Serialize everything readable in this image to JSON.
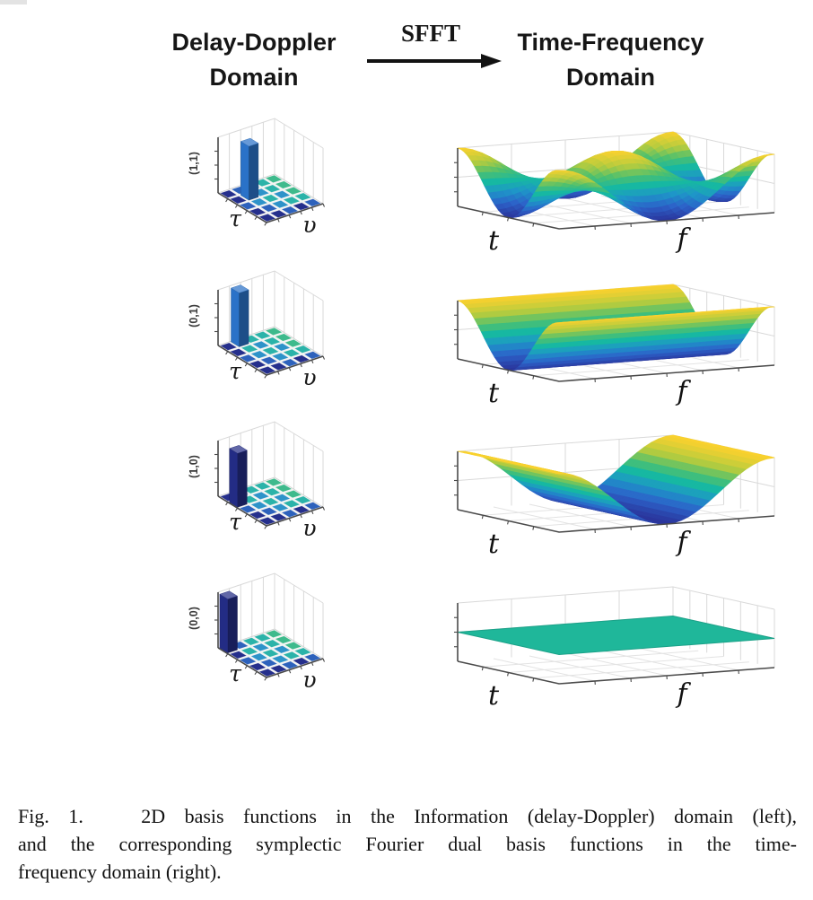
{
  "header": {
    "left_title": [
      "Delay-Doppler",
      "Domain"
    ],
    "transform_label": "SFFT",
    "right_title": [
      "Time-Frequency",
      "Domain"
    ]
  },
  "caption": {
    "figure_label": "Fig. 1.",
    "lines": [
      "Fig. 1.   2D basis functions in the Information (delay-Doppler) domain (left),",
      "and the corresponding symplectic Fourier dual basis functions in the time-",
      "frequency domain (right)."
    ]
  },
  "colors": {
    "parula_stops": [
      [
        0,
        "#2b359c"
      ],
      [
        0.18,
        "#2c63c9"
      ],
      [
        0.35,
        "#1e96c8"
      ],
      [
        0.5,
        "#17b8a2"
      ],
      [
        0.65,
        "#4fc06e"
      ],
      [
        0.8,
        "#b5cc3f"
      ],
      [
        1,
        "#fbd12e"
      ]
    ],
    "flat_surface": "#1fb79a",
    "bar_blue": "#2a72c8",
    "bar_navy": "#232c85",
    "tile_palette": {
      "navy": "#252f8c",
      "blue": "#2d62bc",
      "cyan": "#2e93c9",
      "teal": "#2bb3a9",
      "green": "#3eba8c"
    },
    "axis_dark": "#4a4a4a",
    "wire_light": "#d9d9d9",
    "floor_grid": "#e3e3e3",
    "floor_fill": "#f4f4f2"
  },
  "tile_pattern": [
    [
      "navy",
      "blue",
      "teal",
      "teal",
      "green"
    ],
    [
      "navy",
      "teal",
      "cyan",
      "teal",
      "green"
    ],
    [
      "blue",
      "cyan",
      "teal",
      "cyan",
      "green"
    ],
    [
      "navy",
      "blue",
      "cyan",
      "teal",
      "teal"
    ],
    [
      "navy",
      "navy",
      "blue",
      "navy",
      "blue"
    ]
  ],
  "chart_data": [
    {
      "pair": 1,
      "delay_doppler": {
        "type": "bar3d",
        "coefficient_label": "(1,1)",
        "grid_size": [
          5,
          5
        ],
        "bar_cell": [
          1,
          1
        ],
        "bar_height": 1,
        "bar_color": "#2a72c8",
        "xlabel": "τ",
        "ylabel": "υ"
      },
      "time_frequency": {
        "type": "surface",
        "function": "cos(2πt)·cos(2πf)",
        "periods_t": 1,
        "periods_f": 1,
        "xlabel": "t",
        "ylabel": "f",
        "zrange": [
          -1,
          1
        ]
      }
    },
    {
      "pair": 2,
      "delay_doppler": {
        "type": "bar3d",
        "coefficient_label": "(0,1)",
        "grid_size": [
          5,
          5
        ],
        "bar_cell": [
          0,
          1
        ],
        "bar_height": 1,
        "bar_color": "#2a72c8",
        "xlabel": "τ",
        "ylabel": "υ"
      },
      "time_frequency": {
        "type": "surface",
        "function": "cos(2πt)",
        "periods_t": 1,
        "periods_f": 0,
        "xlabel": "t",
        "ylabel": "f",
        "zrange": [
          -1,
          1
        ]
      }
    },
    {
      "pair": 3,
      "delay_doppler": {
        "type": "bar3d",
        "coefficient_label": "(1,0)",
        "grid_size": [
          5,
          5
        ],
        "bar_cell": [
          1,
          0
        ],
        "bar_height": 1,
        "bar_color": "#232c85",
        "xlabel": "τ",
        "ylabel": "υ"
      },
      "time_frequency": {
        "type": "surface",
        "function": "cos(2πf)",
        "periods_t": 0,
        "periods_f": 1,
        "xlabel": "t",
        "ylabel": "f",
        "zrange": [
          -1,
          1
        ]
      }
    },
    {
      "pair": 4,
      "delay_doppler": {
        "type": "bar3d",
        "coefficient_label": "(0,0)",
        "grid_size": [
          5,
          5
        ],
        "bar_cell": [
          0,
          0
        ],
        "bar_height": 1,
        "bar_color": "#232c85",
        "xlabel": "τ",
        "ylabel": "υ"
      },
      "time_frequency": {
        "type": "flat",
        "function": "constant",
        "flat_color": "#1fb79a",
        "xlabel": "t",
        "ylabel": "f",
        "zrange": [
          -1,
          1
        ]
      }
    }
  ]
}
